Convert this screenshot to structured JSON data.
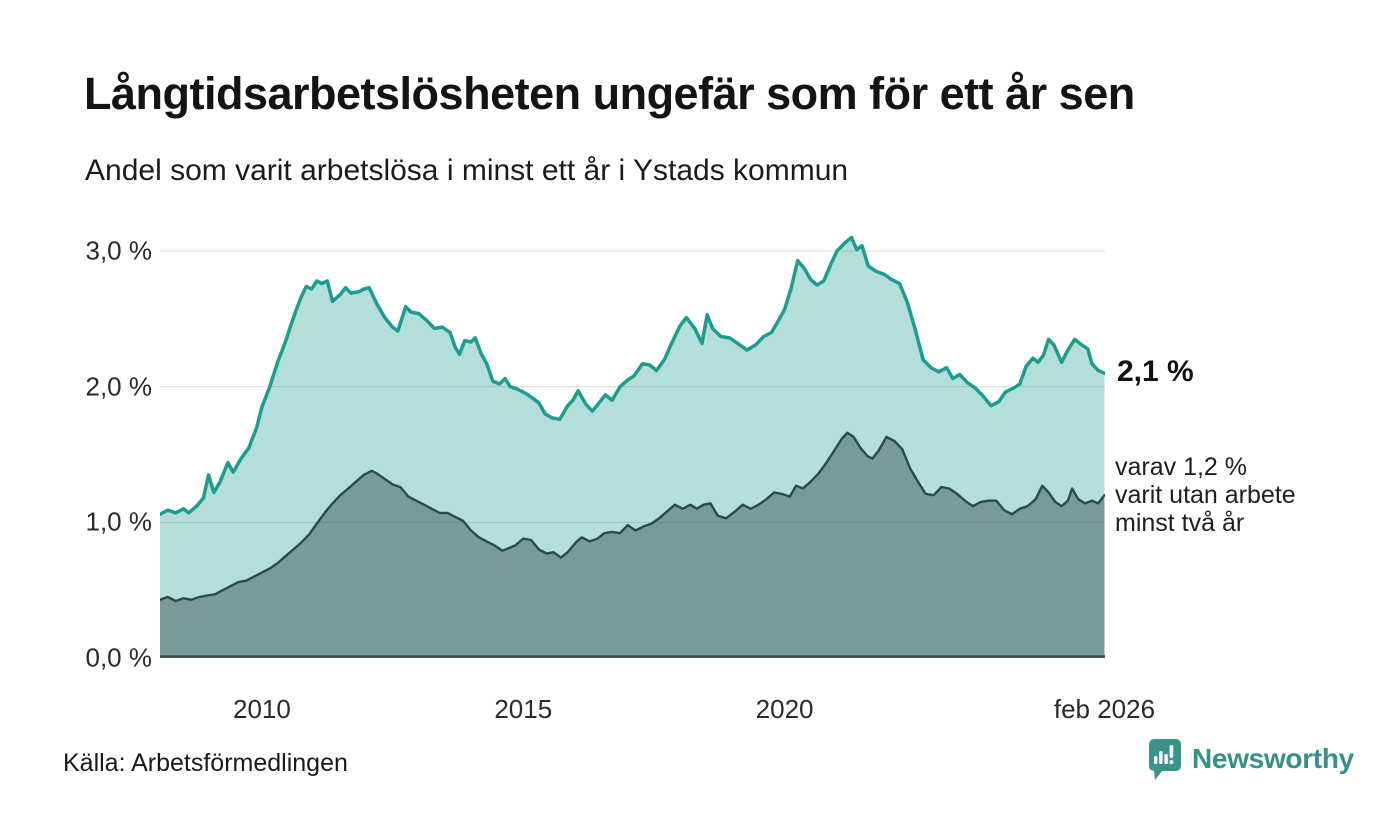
{
  "header": {
    "title": "Långtidsarbetslösheten ungefär som för ett år sen",
    "subtitle": "Andel som varit arbetslösa i minst ett år i Ystads kommun"
  },
  "annotations": {
    "latest_total": "2,1 %",
    "sub_lines": [
      "varav 1,2 %",
      "varit utan arbete",
      "minst två år"
    ]
  },
  "footer": {
    "source": "Källa: Arbetsförmedlingen",
    "logo_text": "Newsworthy"
  },
  "chart_data": {
    "type": "area",
    "title": "Långtidsarbetslösheten ungefär som för ett år sen",
    "subtitle": "Andel som varit arbetslösa i minst ett år i Ystads kommun",
    "unit": "%",
    "region": "Ystads kommun",
    "xlim": [
      2008.05,
      2026.13
    ],
    "ylim": [
      0,
      3.244
    ],
    "grid_color": "#d9d9d9",
    "axis_color": "#3e4946",
    "legend_position": "none",
    "yticks": [
      {
        "value": 0,
        "label": "0,0 %"
      },
      {
        "value": 1,
        "label": "1,0 %"
      },
      {
        "value": 2,
        "label": "2,0 %"
      },
      {
        "value": 3,
        "label": "3,0 %"
      }
    ],
    "xticks": [
      {
        "value": 2010,
        "label": "2010"
      },
      {
        "value": 2015,
        "label": "2015"
      },
      {
        "value": 2020,
        "label": "2020"
      },
      {
        "value": 2026.12,
        "label": "feb 2026"
      }
    ],
    "series": [
      {
        "name": "Arbetslösa minst ett år",
        "latest_value": 2.1,
        "line_color": "#1b9e8e",
        "fill_color": "rgba(26,156,139,0.33)",
        "line_width": 3.5,
        "points": [
          [
            2008.05,
            1.06
          ],
          [
            2008.2,
            1.09
          ],
          [
            2008.35,
            1.07
          ],
          [
            2008.5,
            1.1
          ],
          [
            2008.6,
            1.07
          ],
          [
            2008.75,
            1.12
          ],
          [
            2008.88,
            1.18
          ],
          [
            2008.98,
            1.35
          ],
          [
            2009.08,
            1.22
          ],
          [
            2009.2,
            1.3
          ],
          [
            2009.35,
            1.44
          ],
          [
            2009.45,
            1.37
          ],
          [
            2009.6,
            1.47
          ],
          [
            2009.75,
            1.55
          ],
          [
            2009.9,
            1.7
          ],
          [
            2010.0,
            1.85
          ],
          [
            2010.15,
            2.0
          ],
          [
            2010.3,
            2.18
          ],
          [
            2010.45,
            2.33
          ],
          [
            2010.55,
            2.45
          ],
          [
            2010.65,
            2.56
          ],
          [
            2010.75,
            2.66
          ],
          [
            2010.85,
            2.74
          ],
          [
            2010.95,
            2.72
          ],
          [
            2011.05,
            2.78
          ],
          [
            2011.15,
            2.76
          ],
          [
            2011.25,
            2.78
          ],
          [
            2011.35,
            2.63
          ],
          [
            2011.5,
            2.68
          ],
          [
            2011.6,
            2.73
          ],
          [
            2011.7,
            2.69
          ],
          [
            2011.85,
            2.7
          ],
          [
            2011.95,
            2.72
          ],
          [
            2012.05,
            2.73
          ],
          [
            2012.2,
            2.61
          ],
          [
            2012.35,
            2.51
          ],
          [
            2012.5,
            2.44
          ],
          [
            2012.6,
            2.41
          ],
          [
            2012.75,
            2.59
          ],
          [
            2012.85,
            2.55
          ],
          [
            2013.0,
            2.54
          ],
          [
            2013.15,
            2.49
          ],
          [
            2013.3,
            2.43
          ],
          [
            2013.45,
            2.44
          ],
          [
            2013.6,
            2.4
          ],
          [
            2013.7,
            2.29
          ],
          [
            2013.78,
            2.24
          ],
          [
            2013.88,
            2.34
          ],
          [
            2014.0,
            2.33
          ],
          [
            2014.08,
            2.36
          ],
          [
            2014.2,
            2.24
          ],
          [
            2014.3,
            2.17
          ],
          [
            2014.42,
            2.04
          ],
          [
            2014.55,
            2.02
          ],
          [
            2014.65,
            2.06
          ],
          [
            2014.75,
            2.0
          ],
          [
            2014.9,
            1.98
          ],
          [
            2015.05,
            1.95
          ],
          [
            2015.2,
            1.91
          ],
          [
            2015.3,
            1.88
          ],
          [
            2015.42,
            1.8
          ],
          [
            2015.55,
            1.77
          ],
          [
            2015.7,
            1.76
          ],
          [
            2015.85,
            1.86
          ],
          [
            2015.95,
            1.9
          ],
          [
            2016.05,
            1.97
          ],
          [
            2016.2,
            1.87
          ],
          [
            2016.32,
            1.82
          ],
          [
            2016.45,
            1.88
          ],
          [
            2016.57,
            1.94
          ],
          [
            2016.7,
            1.9
          ],
          [
            2016.85,
            2.0
          ],
          [
            2017.0,
            2.05
          ],
          [
            2017.12,
            2.08
          ],
          [
            2017.28,
            2.17
          ],
          [
            2017.42,
            2.16
          ],
          [
            2017.55,
            2.12
          ],
          [
            2017.7,
            2.2
          ],
          [
            2017.85,
            2.33
          ],
          [
            2018.0,
            2.45
          ],
          [
            2018.12,
            2.51
          ],
          [
            2018.28,
            2.43
          ],
          [
            2018.42,
            2.32
          ],
          [
            2018.52,
            2.53
          ],
          [
            2018.62,
            2.43
          ],
          [
            2018.78,
            2.37
          ],
          [
            2018.95,
            2.36
          ],
          [
            2019.1,
            2.32
          ],
          [
            2019.28,
            2.27
          ],
          [
            2019.45,
            2.31
          ],
          [
            2019.6,
            2.37
          ],
          [
            2019.75,
            2.4
          ],
          [
            2019.9,
            2.5
          ],
          [
            2020.0,
            2.57
          ],
          [
            2020.12,
            2.72
          ],
          [
            2020.25,
            2.93
          ],
          [
            2020.38,
            2.87
          ],
          [
            2020.5,
            2.79
          ],
          [
            2020.62,
            2.75
          ],
          [
            2020.75,
            2.78
          ],
          [
            2020.88,
            2.9
          ],
          [
            2021.0,
            3.0
          ],
          [
            2021.15,
            3.06
          ],
          [
            2021.28,
            3.1
          ],
          [
            2021.38,
            3.01
          ],
          [
            2021.48,
            3.04
          ],
          [
            2021.6,
            2.89
          ],
          [
            2021.75,
            2.85
          ],
          [
            2021.9,
            2.83
          ],
          [
            2022.05,
            2.79
          ],
          [
            2022.2,
            2.76
          ],
          [
            2022.35,
            2.62
          ],
          [
            2022.5,
            2.42
          ],
          [
            2022.65,
            2.2
          ],
          [
            2022.8,
            2.14
          ],
          [
            2022.95,
            2.11
          ],
          [
            2023.1,
            2.14
          ],
          [
            2023.22,
            2.06
          ],
          [
            2023.35,
            2.09
          ],
          [
            2023.5,
            2.03
          ],
          [
            2023.65,
            1.99
          ],
          [
            2023.8,
            1.93
          ],
          [
            2023.95,
            1.86
          ],
          [
            2024.1,
            1.89
          ],
          [
            2024.22,
            1.96
          ],
          [
            2024.38,
            1.99
          ],
          [
            2024.5,
            2.02
          ],
          [
            2024.62,
            2.15
          ],
          [
            2024.75,
            2.21
          ],
          [
            2024.85,
            2.18
          ],
          [
            2024.95,
            2.23
          ],
          [
            2025.05,
            2.35
          ],
          [
            2025.15,
            2.31
          ],
          [
            2025.3,
            2.18
          ],
          [
            2025.42,
            2.27
          ],
          [
            2025.55,
            2.35
          ],
          [
            2025.68,
            2.31
          ],
          [
            2025.8,
            2.28
          ],
          [
            2025.88,
            2.17
          ],
          [
            2026.0,
            2.12
          ],
          [
            2026.12,
            2.1
          ]
        ]
      },
      {
        "name": "Varav utan arbete minst två år",
        "latest_value": 1.2,
        "line_color": "#2c4a46",
        "fill_color": "rgba(45,75,71,0.45)",
        "line_width": 2.4,
        "points": [
          [
            2008.05,
            0.43
          ],
          [
            2008.2,
            0.45
          ],
          [
            2008.35,
            0.42
          ],
          [
            2008.5,
            0.44
          ],
          [
            2008.65,
            0.43
          ],
          [
            2008.8,
            0.45
          ],
          [
            2008.95,
            0.46
          ],
          [
            2009.1,
            0.47
          ],
          [
            2009.25,
            0.5
          ],
          [
            2009.4,
            0.53
          ],
          [
            2009.55,
            0.56
          ],
          [
            2009.7,
            0.57
          ],
          [
            2009.85,
            0.6
          ],
          [
            2010.0,
            0.63
          ],
          [
            2010.15,
            0.66
          ],
          [
            2010.3,
            0.7
          ],
          [
            2010.45,
            0.75
          ],
          [
            2010.6,
            0.8
          ],
          [
            2010.75,
            0.85
          ],
          [
            2010.9,
            0.91
          ],
          [
            2011.05,
            0.99
          ],
          [
            2011.2,
            1.07
          ],
          [
            2011.35,
            1.14
          ],
          [
            2011.5,
            1.2
          ],
          [
            2011.65,
            1.25
          ],
          [
            2011.8,
            1.3
          ],
          [
            2011.95,
            1.35
          ],
          [
            2012.1,
            1.38
          ],
          [
            2012.2,
            1.36
          ],
          [
            2012.35,
            1.32
          ],
          [
            2012.5,
            1.28
          ],
          [
            2012.65,
            1.26
          ],
          [
            2012.8,
            1.19
          ],
          [
            2012.95,
            1.16
          ],
          [
            2013.1,
            1.13
          ],
          [
            2013.25,
            1.1
          ],
          [
            2013.4,
            1.07
          ],
          [
            2013.55,
            1.07
          ],
          [
            2013.7,
            1.04
          ],
          [
            2013.85,
            1.01
          ],
          [
            2014.0,
            0.94
          ],
          [
            2014.15,
            0.89
          ],
          [
            2014.3,
            0.86
          ],
          [
            2014.45,
            0.83
          ],
          [
            2014.6,
            0.79
          ],
          [
            2014.72,
            0.81
          ],
          [
            2014.85,
            0.83
          ],
          [
            2015.0,
            0.88
          ],
          [
            2015.15,
            0.87
          ],
          [
            2015.3,
            0.8
          ],
          [
            2015.45,
            0.77
          ],
          [
            2015.58,
            0.78
          ],
          [
            2015.72,
            0.74
          ],
          [
            2015.85,
            0.78
          ],
          [
            2016.0,
            0.85
          ],
          [
            2016.12,
            0.89
          ],
          [
            2016.27,
            0.86
          ],
          [
            2016.42,
            0.88
          ],
          [
            2016.55,
            0.92
          ],
          [
            2016.7,
            0.93
          ],
          [
            2016.85,
            0.92
          ],
          [
            2017.0,
            0.98
          ],
          [
            2017.15,
            0.94
          ],
          [
            2017.3,
            0.97
          ],
          [
            2017.45,
            0.99
          ],
          [
            2017.6,
            1.03
          ],
          [
            2017.75,
            1.08
          ],
          [
            2017.9,
            1.13
          ],
          [
            2018.05,
            1.1
          ],
          [
            2018.2,
            1.13
          ],
          [
            2018.32,
            1.1
          ],
          [
            2018.45,
            1.13
          ],
          [
            2018.58,
            1.14
          ],
          [
            2018.72,
            1.05
          ],
          [
            2018.88,
            1.03
          ],
          [
            2019.05,
            1.08
          ],
          [
            2019.2,
            1.13
          ],
          [
            2019.35,
            1.1
          ],
          [
            2019.5,
            1.13
          ],
          [
            2019.65,
            1.17
          ],
          [
            2019.8,
            1.22
          ],
          [
            2019.95,
            1.21
          ],
          [
            2020.1,
            1.19
          ],
          [
            2020.22,
            1.27
          ],
          [
            2020.35,
            1.25
          ],
          [
            2020.5,
            1.3
          ],
          [
            2020.65,
            1.36
          ],
          [
            2020.8,
            1.44
          ],
          [
            2020.95,
            1.53
          ],
          [
            2021.1,
            1.62
          ],
          [
            2021.2,
            1.66
          ],
          [
            2021.32,
            1.63
          ],
          [
            2021.45,
            1.55
          ],
          [
            2021.58,
            1.49
          ],
          [
            2021.68,
            1.47
          ],
          [
            2021.8,
            1.53
          ],
          [
            2021.95,
            1.63
          ],
          [
            2022.1,
            1.6
          ],
          [
            2022.25,
            1.54
          ],
          [
            2022.4,
            1.4
          ],
          [
            2022.55,
            1.3
          ],
          [
            2022.7,
            1.21
          ],
          [
            2022.85,
            1.2
          ],
          [
            2023.0,
            1.26
          ],
          [
            2023.15,
            1.25
          ],
          [
            2023.3,
            1.21
          ],
          [
            2023.45,
            1.16
          ],
          [
            2023.6,
            1.12
          ],
          [
            2023.75,
            1.15
          ],
          [
            2023.9,
            1.16
          ],
          [
            2024.05,
            1.16
          ],
          [
            2024.2,
            1.09
          ],
          [
            2024.35,
            1.06
          ],
          [
            2024.5,
            1.1
          ],
          [
            2024.65,
            1.12
          ],
          [
            2024.8,
            1.17
          ],
          [
            2024.93,
            1.27
          ],
          [
            2025.05,
            1.22
          ],
          [
            2025.18,
            1.15
          ],
          [
            2025.3,
            1.12
          ],
          [
            2025.42,
            1.16
          ],
          [
            2025.5,
            1.25
          ],
          [
            2025.62,
            1.17
          ],
          [
            2025.75,
            1.14
          ],
          [
            2025.88,
            1.16
          ],
          [
            2026.0,
            1.14
          ],
          [
            2026.12,
            1.2
          ]
        ]
      }
    ]
  }
}
